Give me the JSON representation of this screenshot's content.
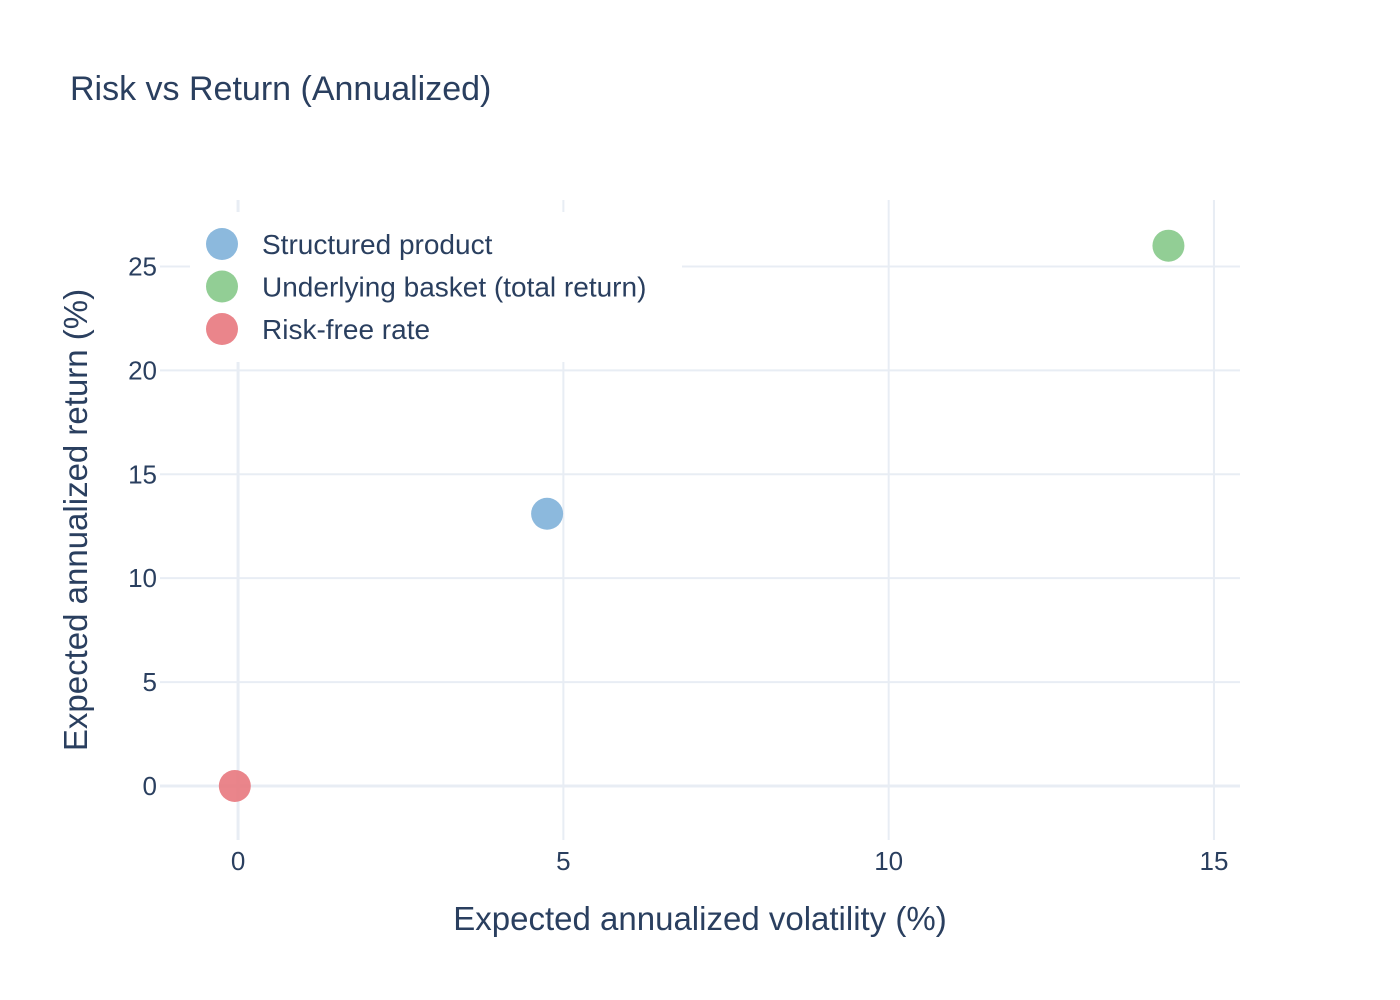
{
  "chart_data": {
    "type": "scatter",
    "title": "Risk vs Return (Annualized)",
    "xlabel": "Expected annualized volatility (%)",
    "ylabel": "Expected annualized return (%)",
    "xlim": [
      -1.2,
      15.4
    ],
    "ylim": [
      -2.6,
      28.2
    ],
    "xticks": [
      0,
      5,
      10,
      15
    ],
    "yticks": [
      0,
      5,
      10,
      15,
      20,
      25
    ],
    "grid": true,
    "legend_position": "top-left",
    "series": [
      {
        "name": "Structured product",
        "color": "#7fb1d9",
        "points": [
          {
            "x": 4.75,
            "y": 13.1
          }
        ]
      },
      {
        "name": "Underlying basket (total return)",
        "color": "#86c98a",
        "points": [
          {
            "x": 14.3,
            "y": 26.0
          }
        ]
      },
      {
        "name": "Risk-free rate",
        "color": "#e8787e",
        "points": [
          {
            "x": -0.05,
            "y": 0.0
          }
        ]
      }
    ]
  }
}
